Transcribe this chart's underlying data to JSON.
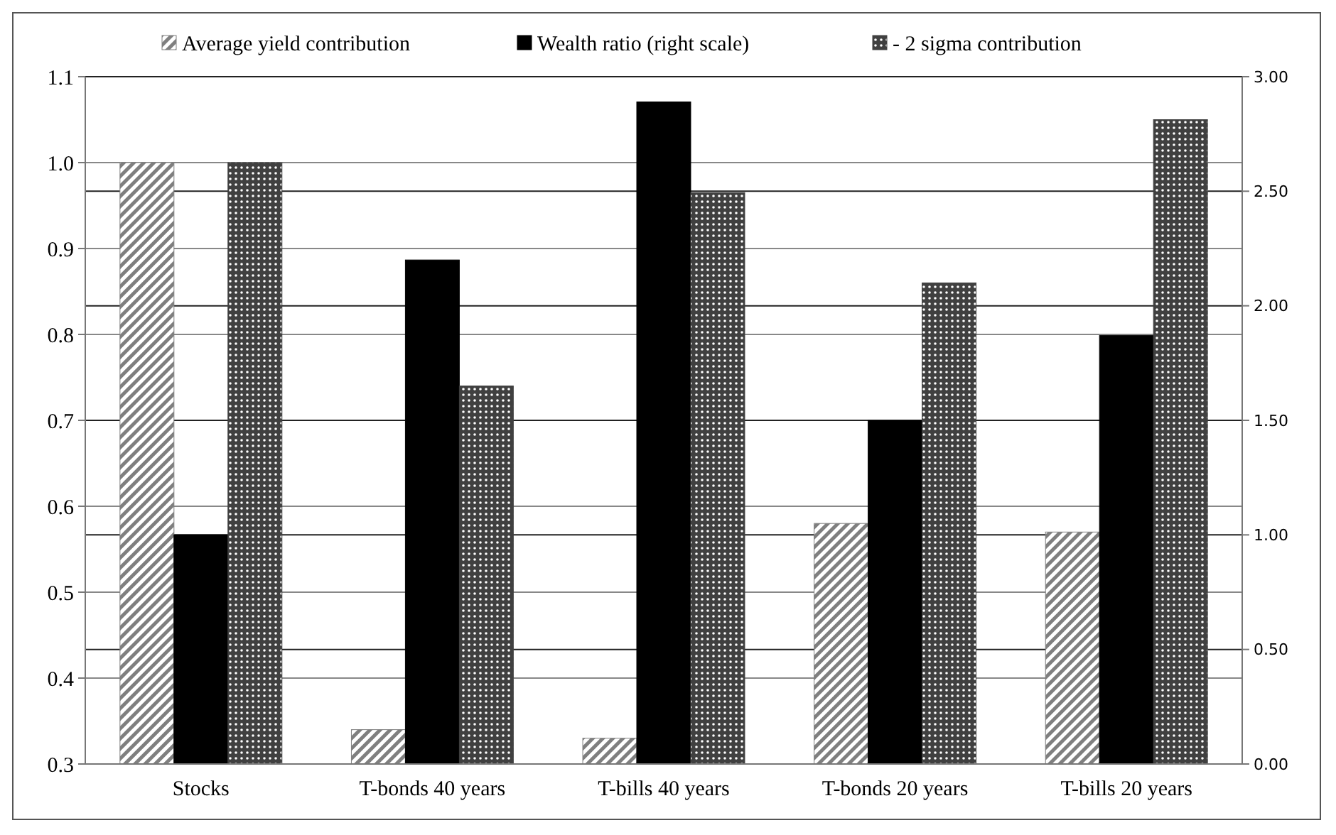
{
  "chart_data": {
    "type": "bar",
    "categories": [
      "Stocks",
      "T-bonds 40 years",
      "T-bills 40 years",
      "T-bonds 20 years",
      "T-bills 20 years"
    ],
    "series": [
      {
        "name": "Average yield contribution",
        "color": "#7f7f7f",
        "values": [
          1.0,
          0.34,
          0.33,
          0.58,
          0.57
        ]
      },
      {
        "name": "Wealth ratio (right scale)",
        "color": "#000000",
        "axis": "y2",
        "values": [
          1.0,
          2.2,
          2.89,
          1.5,
          1.87
        ]
      },
      {
        "name": "- 2 sigma contribution",
        "color": "#404040",
        "values": [
          1.0,
          0.74,
          0.965,
          0.86,
          1.05
        ]
      }
    ],
    "ylim": [
      0.3,
      1.1
    ],
    "yticks": [
      {
        "value": 0.3,
        "label": "0.3"
      },
      {
        "value": 0.4,
        "label": "0.4"
      },
      {
        "value": 0.5,
        "label": "0.5"
      },
      {
        "value": 0.6,
        "label": "0.6"
      },
      {
        "value": 0.7,
        "label": "0.7"
      },
      {
        "value": 0.8,
        "label": "0.8"
      },
      {
        "value": 0.9,
        "label": "0.9"
      },
      {
        "value": 1.0,
        "label": "1.0"
      },
      {
        "value": 1.1,
        "label": "1.1"
      }
    ],
    "y2lim": [
      0,
      3
    ],
    "y2ticks": [
      {
        "value": 0,
        "label": "0.00"
      },
      {
        "value": 0.5,
        "label": "0.50"
      },
      {
        "value": 1,
        "label": "1.00"
      },
      {
        "value": 1.5,
        "label": "1.50"
      },
      {
        "value": 2,
        "label": "2.00"
      },
      {
        "value": 2.5,
        "label": "2.50"
      },
      {
        "value": 3,
        "label": "3.00"
      }
    ],
    "grid": true,
    "legend": "top"
  }
}
